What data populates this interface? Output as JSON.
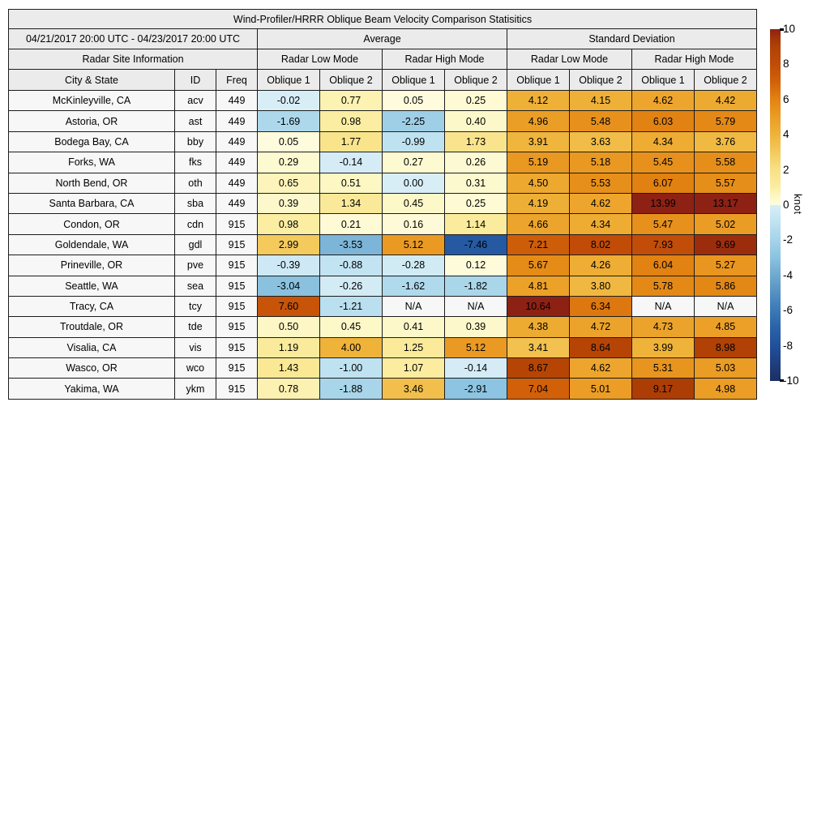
{
  "chart_data": {
    "type": "heatmap",
    "title": "Wind-Profiler/HRRR Oblique Beam Velocity Comparison Statisitics",
    "date_range": "04/21/2017 20:00 UTC - 04/23/2017 20:00 UTC",
    "unit": "knot",
    "na_text": "N/A",
    "group_headers": {
      "average": "Average",
      "std_dev": "Standard Deviation",
      "site_info": "Radar Site Information",
      "low_mode": "Radar Low Mode",
      "high_mode": "Radar High Mode"
    },
    "column_headers": {
      "city": "City & State",
      "id": "ID",
      "freq": "Freq",
      "oblique1": "Oblique 1",
      "oblique2": "Oblique 2"
    },
    "value_columns": [
      "Average Radar Low Mode Oblique 1",
      "Average Radar Low Mode Oblique 2",
      "Average Radar High Mode Oblique 1",
      "Average Radar High Mode Oblique 2",
      "Std Dev Radar Low Mode Oblique 1",
      "Std Dev Radar Low Mode Oblique 2",
      "Std Dev Radar High Mode Oblique 1",
      "Std Dev Radar High Mode Oblique 2"
    ],
    "rows": [
      {
        "city": "McKinleyville, CA",
        "id": "acv",
        "freq": 449,
        "values": [
          -0.02,
          0.77,
          0.05,
          0.25,
          4.12,
          4.15,
          4.62,
          4.42
        ]
      },
      {
        "city": "Astoria, OR",
        "id": "ast",
        "freq": 449,
        "values": [
          -1.69,
          0.98,
          -2.25,
          0.4,
          4.96,
          5.48,
          6.03,
          5.79
        ]
      },
      {
        "city": "Bodega Bay, CA",
        "id": "bby",
        "freq": 449,
        "values": [
          0.05,
          1.77,
          -0.99,
          1.73,
          3.91,
          3.63,
          4.34,
          3.76
        ]
      },
      {
        "city": "Forks, WA",
        "id": "fks",
        "freq": 449,
        "values": [
          0.29,
          -0.14,
          0.27,
          0.26,
          5.19,
          5.18,
          5.45,
          5.58
        ]
      },
      {
        "city": "North Bend, OR",
        "id": "oth",
        "freq": 449,
        "values": [
          0.65,
          0.51,
          0.0,
          0.31,
          4.5,
          5.53,
          6.07,
          5.57
        ]
      },
      {
        "city": "Santa Barbara, CA",
        "id": "sba",
        "freq": 449,
        "values": [
          0.39,
          1.34,
          0.45,
          0.25,
          4.19,
          4.62,
          13.99,
          13.17
        ]
      },
      {
        "city": "Condon, OR",
        "id": "cdn",
        "freq": 915,
        "values": [
          0.98,
          0.21,
          0.16,
          1.14,
          4.66,
          4.34,
          5.47,
          5.02
        ]
      },
      {
        "city": "Goldendale, WA",
        "id": "gdl",
        "freq": 915,
        "values": [
          2.99,
          -3.53,
          5.12,
          -7.46,
          7.21,
          8.02,
          7.93,
          9.69
        ]
      },
      {
        "city": "Prineville, OR",
        "id": "pve",
        "freq": 915,
        "values": [
          -0.39,
          -0.88,
          -0.28,
          0.12,
          5.67,
          4.26,
          6.04,
          5.27
        ]
      },
      {
        "city": "Seattle, WA",
        "id": "sea",
        "freq": 915,
        "values": [
          -3.04,
          -0.26,
          -1.62,
          -1.82,
          4.81,
          3.8,
          5.78,
          5.86
        ]
      },
      {
        "city": "Tracy, CA",
        "id": "tcy",
        "freq": 915,
        "values": [
          7.6,
          -1.21,
          null,
          null,
          10.64,
          6.34,
          null,
          null
        ]
      },
      {
        "city": "Troutdale, OR",
        "id": "tde",
        "freq": 915,
        "values": [
          0.5,
          0.45,
          0.41,
          0.39,
          4.38,
          4.72,
          4.73,
          4.85
        ]
      },
      {
        "city": "Visalia, CA",
        "id": "vis",
        "freq": 915,
        "values": [
          1.19,
          4.0,
          1.25,
          5.12,
          3.41,
          8.64,
          3.99,
          8.98
        ]
      },
      {
        "city": "Wasco, OR",
        "id": "wco",
        "freq": 915,
        "values": [
          1.43,
          -1.0,
          1.07,
          -0.14,
          8.67,
          4.62,
          5.31,
          5.03
        ]
      },
      {
        "city": "Yakima, WA",
        "id": "ykm",
        "freq": 915,
        "values": [
          0.78,
          -1.88,
          3.46,
          -2.91,
          7.04,
          5.01,
          9.17,
          4.98
        ]
      }
    ],
    "colorbar": {
      "label": "knot",
      "min": -10,
      "max": 10,
      "tick_labels": [
        "10",
        "8",
        "6",
        "4",
        "2",
        "0",
        "-2",
        "-4",
        "-6",
        "-8",
        "-10"
      ]
    },
    "colors": {
      "header_bg": "#ebebeb",
      "label_cell_bg": "#f7f7f7",
      "na_cell_bg": "#f7f7f7",
      "border": "#1c1c1c",
      "warm_anchors": [
        [
          0,
          "#fefce0"
        ],
        [
          0.5,
          "#fdf7c5"
        ],
        [
          1,
          "#fbeda1"
        ],
        [
          2,
          "#f8e186"
        ],
        [
          3,
          "#f4ca5d"
        ],
        [
          4,
          "#efb33a"
        ],
        [
          5,
          "#eb9d25"
        ],
        [
          6,
          "#e28312"
        ],
        [
          7,
          "#d26109"
        ],
        [
          8,
          "#c04c08"
        ],
        [
          9,
          "#b14104"
        ],
        [
          9.5,
          "#a33408"
        ],
        [
          10,
          "#8d2114"
        ]
      ],
      "cool_anchors": [
        [
          -10,
          "#1c2e62"
        ],
        [
          -9,
          "#1e3f80"
        ],
        [
          -8,
          "#20509c"
        ],
        [
          -7,
          "#2a62a8"
        ],
        [
          -6,
          "#3b79b7"
        ],
        [
          -5,
          "#5590c3"
        ],
        [
          -4,
          "#70a9cf"
        ],
        [
          -3,
          "#8ac2e0"
        ],
        [
          -2,
          "#a5d3e9"
        ],
        [
          -1,
          "#bfe2f1"
        ],
        [
          0,
          "#d8eef7"
        ]
      ]
    }
  }
}
